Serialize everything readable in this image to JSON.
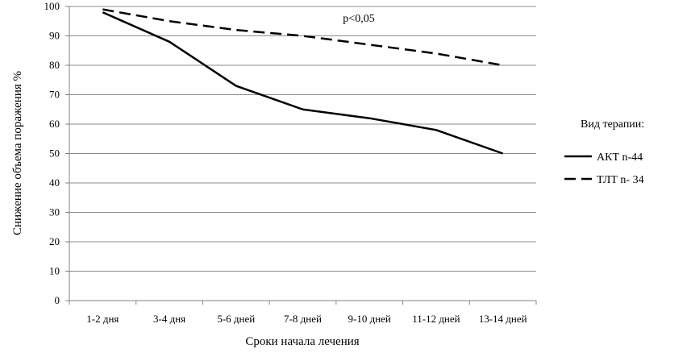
{
  "chart_data": {
    "type": "line",
    "categories": [
      "1-2 дня",
      "3-4 дня",
      "5-6 дней",
      "7-8 дней",
      "9-10 дней",
      "11-12 дней",
      "13-14 дней"
    ],
    "ylim": [
      0,
      100
    ],
    "yticks": [
      0,
      10,
      20,
      30,
      40,
      50,
      60,
      70,
      80,
      90,
      100
    ],
    "xlabel": "Сроки начала лечения",
    "ylabel": "Снижение объема поражения %",
    "annotation": "p<0,05",
    "grid": true,
    "legend": {
      "title": "Вид терапии:",
      "placement": "right"
    },
    "series": [
      {
        "name": "АКТ n-44",
        "style": "solid",
        "color": "#000000",
        "values": [
          98,
          88,
          73,
          65,
          62,
          58,
          50
        ]
      },
      {
        "name": "ТЛТ n- 34",
        "style": "dashed",
        "color": "#000000",
        "values": [
          99,
          95,
          92,
          90,
          87,
          84,
          80
        ]
      }
    ]
  }
}
